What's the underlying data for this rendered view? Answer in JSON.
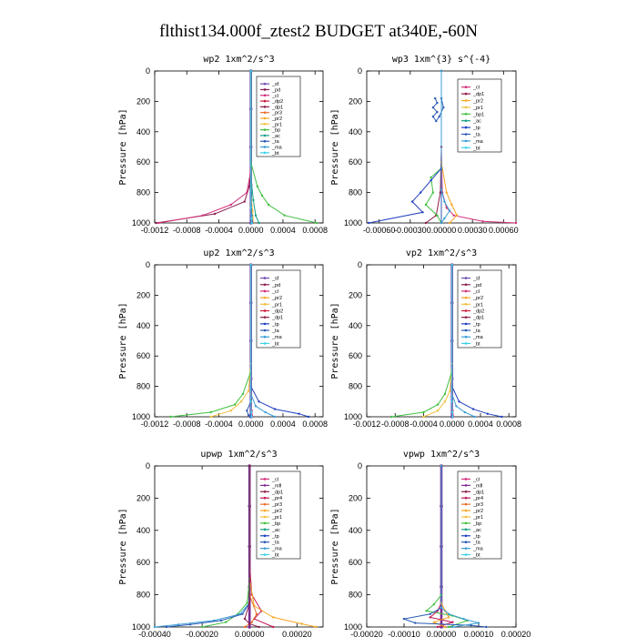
{
  "figure": {
    "title": "flthist134.000f_ztest2  BUDGET at340E,-60N"
  },
  "colors": {
    "sf": "#6e4db0",
    "pd": "#8a1e52",
    "cl": "#d32f7a",
    "mt": "#7e2b8f",
    "dp1": "#8e1c4c",
    "dp2": "#c81a3c",
    "pr1": "#f0c040",
    "pr2": "#f5a623",
    "pr3": "#e8712a",
    "pr4": "#c2185b",
    "bp": "#3fbf3f",
    "ac": "#16a085",
    "tp": "#1f3fbf",
    "ta": "#2a5ab5",
    "ma": "#3b9ed6",
    "bt": "#3cd2e6"
  },
  "chart_data": [
    {
      "type": "line",
      "title": "wp2   1xm^2/s^3",
      "ylabel": "Pressure [hPa]",
      "xlim": [
        -0.0012,
        0.0009
      ],
      "ylim": [
        1000,
        0
      ],
      "xticks": [
        "-0.0012",
        "-0.0008",
        "-0.0004",
        "0.0000",
        "0.0004",
        "0.0008"
      ],
      "yticks": [
        "0",
        "200",
        "400",
        "600",
        "800",
        "1000"
      ],
      "legend": [
        "_sf",
        "_pd",
        "_cl",
        "_dp2",
        "_dp1",
        "_pr3",
        "_pr2",
        "_pr1",
        "_bp",
        "_ac",
        "_ta",
        "_ma",
        "_bt"
      ],
      "series": [
        {
          "key": "sf",
          "x": [
            0,
            0,
            0,
            0,
            0
          ],
          "y": [
            0,
            250,
            500,
            750,
            1000
          ]
        },
        {
          "key": "pd",
          "x": [
            0,
            0,
            -2e-05,
            -8e-05,
            -0.00045,
            -0.00118
          ],
          "y": [
            0,
            600,
            760,
            860,
            940,
            1000
          ]
        },
        {
          "key": "cl",
          "x": [
            0,
            0,
            -5e-05,
            -0.00025,
            -0.0006,
            -0.00115
          ],
          "y": [
            0,
            650,
            800,
            880,
            950,
            1000
          ]
        },
        {
          "key": "bp",
          "x": [
            0,
            0,
            8e-05,
            0.00014,
            0.00022,
            0.00042,
            0.00082
          ],
          "y": [
            0,
            600,
            760,
            820,
            880,
            950,
            1000
          ]
        },
        {
          "key": "ac",
          "x": [
            0,
            0,
            3e-05,
            6e-05,
            0.0001
          ],
          "y": [
            0,
            700,
            850,
            950,
            1000
          ]
        },
        {
          "key": "pr1",
          "x": [
            0,
            0,
            2e-05,
            3e-05
          ],
          "y": [
            0,
            800,
            920,
            1000
          ]
        },
        {
          "key": "ta",
          "x": [
            0,
            0,
            1e-05,
            2e-05
          ],
          "y": [
            0,
            800,
            950,
            1000
          ]
        },
        {
          "key": "bt",
          "x": [
            0,
            0,
            5e-06,
            1e-05
          ],
          "y": [
            0,
            900,
            970,
            1000
          ]
        }
      ]
    },
    {
      "type": "line",
      "title": "wp3   1xm^{3} s^{-4}",
      "ylabel": "Pressure [hPa]",
      "xlim": [
        -0.00072,
        0.00072
      ],
      "ylim": [
        1000,
        0
      ],
      "xticks": [
        "-0.00060",
        "-0.00030",
        "0.00000",
        "0.00030",
        "0.00060"
      ],
      "yticks": [
        "0",
        "200",
        "400",
        "600",
        "800",
        "1000"
      ],
      "legend": [
        "_cl",
        "_dp1",
        "_pr2",
        "_pr1",
        "_bp1",
        "_ac",
        "_tp",
        "_ta",
        "_ma",
        "_bt"
      ],
      "series": [
        {
          "key": "cl",
          "x": [
            0,
            0,
            1e-05,
            5e-05,
            0.00012,
            0.0004,
            0.00072
          ],
          "y": [
            0,
            500,
            800,
            900,
            950,
            990,
            1000
          ]
        },
        {
          "key": "dp1",
          "x": [
            0,
            0,
            -1e-05,
            -5e-05,
            -0.00015
          ],
          "y": [
            0,
            500,
            800,
            950,
            1000
          ]
        },
        {
          "key": "pr2",
          "x": [
            0,
            0,
            5e-05,
            0.0001,
            0.00015,
            8e-05
          ],
          "y": [
            0,
            600,
            800,
            880,
            950,
            1000
          ]
        },
        {
          "key": "bp",
          "x": [
            0,
            0,
            -0.0001,
            -8e-05,
            -0.00015,
            -4e-05,
            0
          ],
          "y": [
            0,
            640,
            700,
            800,
            880,
            950,
            1000
          ]
        },
        {
          "key": "tp",
          "x": [
            0,
            0,
            -0.0001,
            -0.0002,
            -0.00028,
            -0.00018,
            -0.0007
          ],
          "y": [
            0,
            640,
            720,
            800,
            860,
            930,
            1000
          ]
        },
        {
          "key": "ta",
          "x": [
            -6e-05,
            -4e-05,
            -8e-05,
            -4e-05,
            -8e-05,
            -5e-05,
            -2e-05,
            2e-05,
            0,
            0
          ],
          "y": [
            180,
            210,
            240,
            270,
            300,
            330,
            300,
            240,
            180,
            1000
          ]
        },
        {
          "key": "ma",
          "x": [
            0,
            0,
            3e-05,
            8e-05,
            3e-05,
            0
          ],
          "y": [
            0,
            780,
            860,
            920,
            970,
            1000
          ]
        }
      ]
    },
    {
      "type": "line",
      "title": "up2   1xm^2/s^3",
      "ylabel": "Pressure [hPa]",
      "xlim": [
        -0.0012,
        0.0009
      ],
      "ylim": [
        1000,
        0
      ],
      "xticks": [
        "-0.0012",
        "-0.0008",
        "-0.0004",
        "0.0000",
        "0.0004",
        "0.0008"
      ],
      "yticks": [
        "0",
        "200",
        "400",
        "600",
        "800",
        "1000"
      ],
      "legend": [
        "_sf",
        "_pd",
        "_cl",
        "_pr2",
        "_pr1",
        "_dp2",
        "_dp1",
        "_tp",
        "_ta",
        "_ma",
        "_bt"
      ],
      "series": [
        {
          "key": "sf",
          "x": [
            0,
            0,
            0,
            0,
            0
          ],
          "y": [
            0,
            250,
            500,
            750,
            1000
          ]
        },
        {
          "key": "pr1",
          "x": [
            0,
            0,
            -3e-05,
            -0.00012,
            -0.00025,
            -0.0005
          ],
          "y": [
            0,
            650,
            830,
            900,
            960,
            1000
          ]
        },
        {
          "key": "bp",
          "x": [
            0,
            0,
            -0.0001,
            -0.0002,
            -0.0005,
            -0.001
          ],
          "y": [
            0,
            700,
            850,
            920,
            970,
            1000
          ]
        },
        {
          "key": "tp",
          "x": [
            0,
            0,
            0.0001,
            0.0003,
            0.0006,
            0.00072
          ],
          "y": [
            0,
            800,
            900,
            950,
            980,
            1000
          ]
        },
        {
          "key": "ta",
          "x": [
            0,
            0,
            -5e-05,
            -3e-05,
            0
          ],
          "y": [
            0,
            900,
            960,
            990,
            1000
          ]
        },
        {
          "key": "ma",
          "x": [
            0,
            0,
            6e-05,
            0.00018,
            0.0003
          ],
          "y": [
            0,
            850,
            930,
            970,
            1000
          ]
        },
        {
          "key": "cl",
          "x": [
            0,
            0,
            1e-05,
            2e-05
          ],
          "y": [
            0,
            850,
            960,
            1000
          ]
        },
        {
          "key": "bt",
          "x": [
            0,
            0,
            5e-06,
            1e-05
          ],
          "y": [
            0,
            900,
            970,
            1000
          ]
        }
      ]
    },
    {
      "type": "line",
      "title": "vp2   1xm^2/s^3",
      "ylabel": "Pressure [hPa]",
      "xlim": [
        -0.0012,
        0.0009
      ],
      "ylim": [
        1000,
        0
      ],
      "xticks": [
        "-0.0012",
        "-0.0008",
        "-0.0004",
        "0.0000",
        "0.0004",
        "0.0008"
      ],
      "yticks": [
        "0",
        "200",
        "400",
        "600",
        "800",
        "1000"
      ],
      "legend": [
        "_sf",
        "_pd",
        "_cl",
        "_pr2",
        "_pr1",
        "_dp2",
        "_dp1",
        "_tp",
        "_ta",
        "_ma",
        "_bt"
      ],
      "series": [
        {
          "key": "sf",
          "x": [
            0,
            0,
            0,
            0,
            0
          ],
          "y": [
            0,
            250,
            500,
            750,
            1000
          ]
        },
        {
          "key": "pr1",
          "x": [
            0,
            0,
            -3e-05,
            -0.0001,
            -0.0002,
            -0.0004
          ],
          "y": [
            0,
            650,
            830,
            900,
            960,
            1000
          ]
        },
        {
          "key": "bp",
          "x": [
            0,
            0,
            -0.0001,
            -0.0002,
            -0.0004,
            -0.00085
          ],
          "y": [
            0,
            700,
            850,
            920,
            970,
            1000
          ]
        },
        {
          "key": "tp",
          "x": [
            0,
            0,
            0.0001,
            0.0003,
            0.0005,
            0.0007
          ],
          "y": [
            0,
            800,
            900,
            950,
            980,
            1000
          ]
        },
        {
          "key": "ma",
          "x": [
            0,
            0,
            6e-05,
            0.00018,
            0.00032
          ],
          "y": [
            0,
            850,
            930,
            970,
            1000
          ]
        },
        {
          "key": "cl",
          "x": [
            0,
            0,
            1e-05,
            2e-05
          ],
          "y": [
            0,
            850,
            960,
            1000
          ]
        },
        {
          "key": "bt",
          "x": [
            0,
            0,
            5e-06,
            1e-05
          ],
          "y": [
            0,
            900,
            970,
            1000
          ]
        }
      ]
    },
    {
      "type": "line",
      "title": "upwp   1xm^2/s^3",
      "ylabel": "Pressure [hPa]",
      "xlim": [
        -0.0004,
        0.00031
      ],
      "ylim": [
        1000,
        0
      ],
      "xticks": [
        "-0.00040",
        "-0.00020",
        "0.00000",
        "0.00020"
      ],
      "yticks": [
        "0",
        "200",
        "400",
        "600",
        "800",
        "1000"
      ],
      "legend": [
        "_cl",
        "_mfl",
        "_dp1",
        "_pr4",
        "_pr3",
        "_pr2",
        "_pr1",
        "_bp",
        "_ac",
        "_tp",
        "_ta",
        "_ma",
        "_bt"
      ],
      "series": [
        {
          "key": "mt",
          "x": [
            0,
            0,
            0,
            0,
            0
          ],
          "y": [
            0,
            250,
            500,
            750,
            1000
          ]
        },
        {
          "key": "pr4",
          "x": [
            0,
            0,
            1e-05,
            5e-05,
            2e-05,
            0.0001
          ],
          "y": [
            0,
            600,
            800,
            900,
            950,
            1000
          ]
        },
        {
          "key": "pr2",
          "x": [
            0,
            0,
            2e-05,
            0.0001,
            0.00022,
            0.00028
          ],
          "y": [
            0,
            700,
            870,
            940,
            980,
            1000
          ]
        },
        {
          "key": "pr3",
          "x": [
            0,
            0,
            3e-05,
            1e-05,
            -2e-05
          ],
          "y": [
            0,
            800,
            920,
            970,
            1000
          ]
        },
        {
          "key": "bp",
          "x": [
            0,
            0,
            -1e-05,
            -5e-05,
            -0.0001,
            -0.0002
          ],
          "y": [
            0,
            700,
            850,
            920,
            970,
            1000
          ]
        },
        {
          "key": "ma",
          "x": [
            0,
            0,
            -4e-05,
            -0.00015,
            -0.0003,
            -0.0004
          ],
          "y": [
            0,
            850,
            920,
            960,
            985,
            1000
          ]
        },
        {
          "key": "ta",
          "x": [
            0,
            0,
            -3e-05,
            -0.00012,
            -0.00025,
            -0.00035
          ],
          "y": [
            0,
            850,
            920,
            960,
            985,
            1000
          ]
        },
        {
          "key": "pd",
          "x": [
            0,
            0,
            -2e-05,
            0,
            4e-05
          ],
          "y": [
            0,
            850,
            950,
            980,
            1000
          ]
        }
      ]
    },
    {
      "type": "line",
      "title": "vpwp   1xm^2/s^3",
      "ylabel": "Pressure [hPa]",
      "xlim": [
        -0.0002,
        0.0002
      ],
      "ylim": [
        1000,
        0
      ],
      "xticks": [
        "-0.00020",
        "-0.00010",
        "0.00000",
        "0.00010",
        "0.00020"
      ],
      "yticks": [
        "0",
        "200",
        "400",
        "600",
        "800",
        "1000"
      ],
      "legend": [
        "_cl",
        "_mfl",
        "_dp1",
        "_pr4",
        "_pr3",
        "_pr2",
        "_pr1",
        "_bp",
        "_ac",
        "_tp",
        "_ta",
        "_ma",
        "_bt"
      ],
      "series": [
        {
          "key": "mt",
          "x": [
            0,
            0,
            0,
            0,
            0
          ],
          "y": [
            0,
            250,
            500,
            750,
            1000
          ]
        },
        {
          "key": "bp",
          "x": [
            0,
            0,
            -2e-05,
            -4e-05,
            3e-05,
            7e-05,
            2e-05
          ],
          "y": [
            0,
            800,
            860,
            900,
            930,
            960,
            1000
          ]
        },
        {
          "key": "pr4",
          "x": [
            0,
            0,
            -1e-05,
            -3e-05,
            3e-05,
            -1e-05
          ],
          "y": [
            0,
            850,
            900,
            940,
            970,
            1000
          ]
        },
        {
          "key": "pr2",
          "x": [
            0,
            0,
            1e-05,
            2e-05,
            -2e-05,
            1e-05
          ],
          "y": [
            0,
            850,
            900,
            940,
            970,
            1000
          ]
        },
        {
          "key": "ta",
          "x": [
            0,
            0,
            -3e-05,
            -0.0001,
            -7e-05,
            8e-05,
            0.00012
          ],
          "y": [
            0,
            880,
            920,
            950,
            975,
            990,
            1000
          ]
        },
        {
          "key": "ma",
          "x": [
            0,
            0,
            2e-05,
            6e-05,
            0.0001,
            3e-05
          ],
          "y": [
            0,
            880,
            920,
            950,
            975,
            1000
          ]
        }
      ]
    }
  ]
}
